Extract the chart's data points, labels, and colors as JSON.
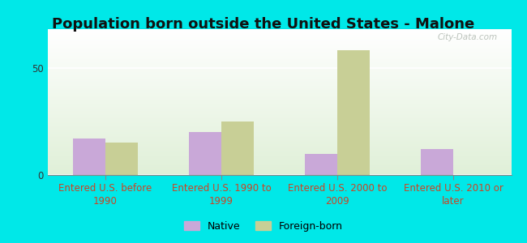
{
  "title": "Population born outside the United States - Malone",
  "categories": [
    "Entered U.S. before\n1990",
    "Entered U.S. 1990 to\n1999",
    "Entered U.S. 2000 to\n2009",
    "Entered U.S. 2010 or\nlater"
  ],
  "native_values": [
    17,
    20,
    10,
    12
  ],
  "foreign_values": [
    15,
    25,
    58,
    0
  ],
  "native_color": "#c9a8d8",
  "foreign_color": "#c8cf96",
  "ylim": [
    0,
    68
  ],
  "yticks": [
    0,
    50
  ],
  "bar_width": 0.28,
  "background_color_fig": "#00e8e8",
  "grid_color": "#ffffff",
  "title_fontsize": 13,
  "axis_label_fontsize": 8.5,
  "legend_labels": [
    "Native",
    "Foreign-born"
  ],
  "watermark": "City-Data.com",
  "tick_color": "#cc4422"
}
